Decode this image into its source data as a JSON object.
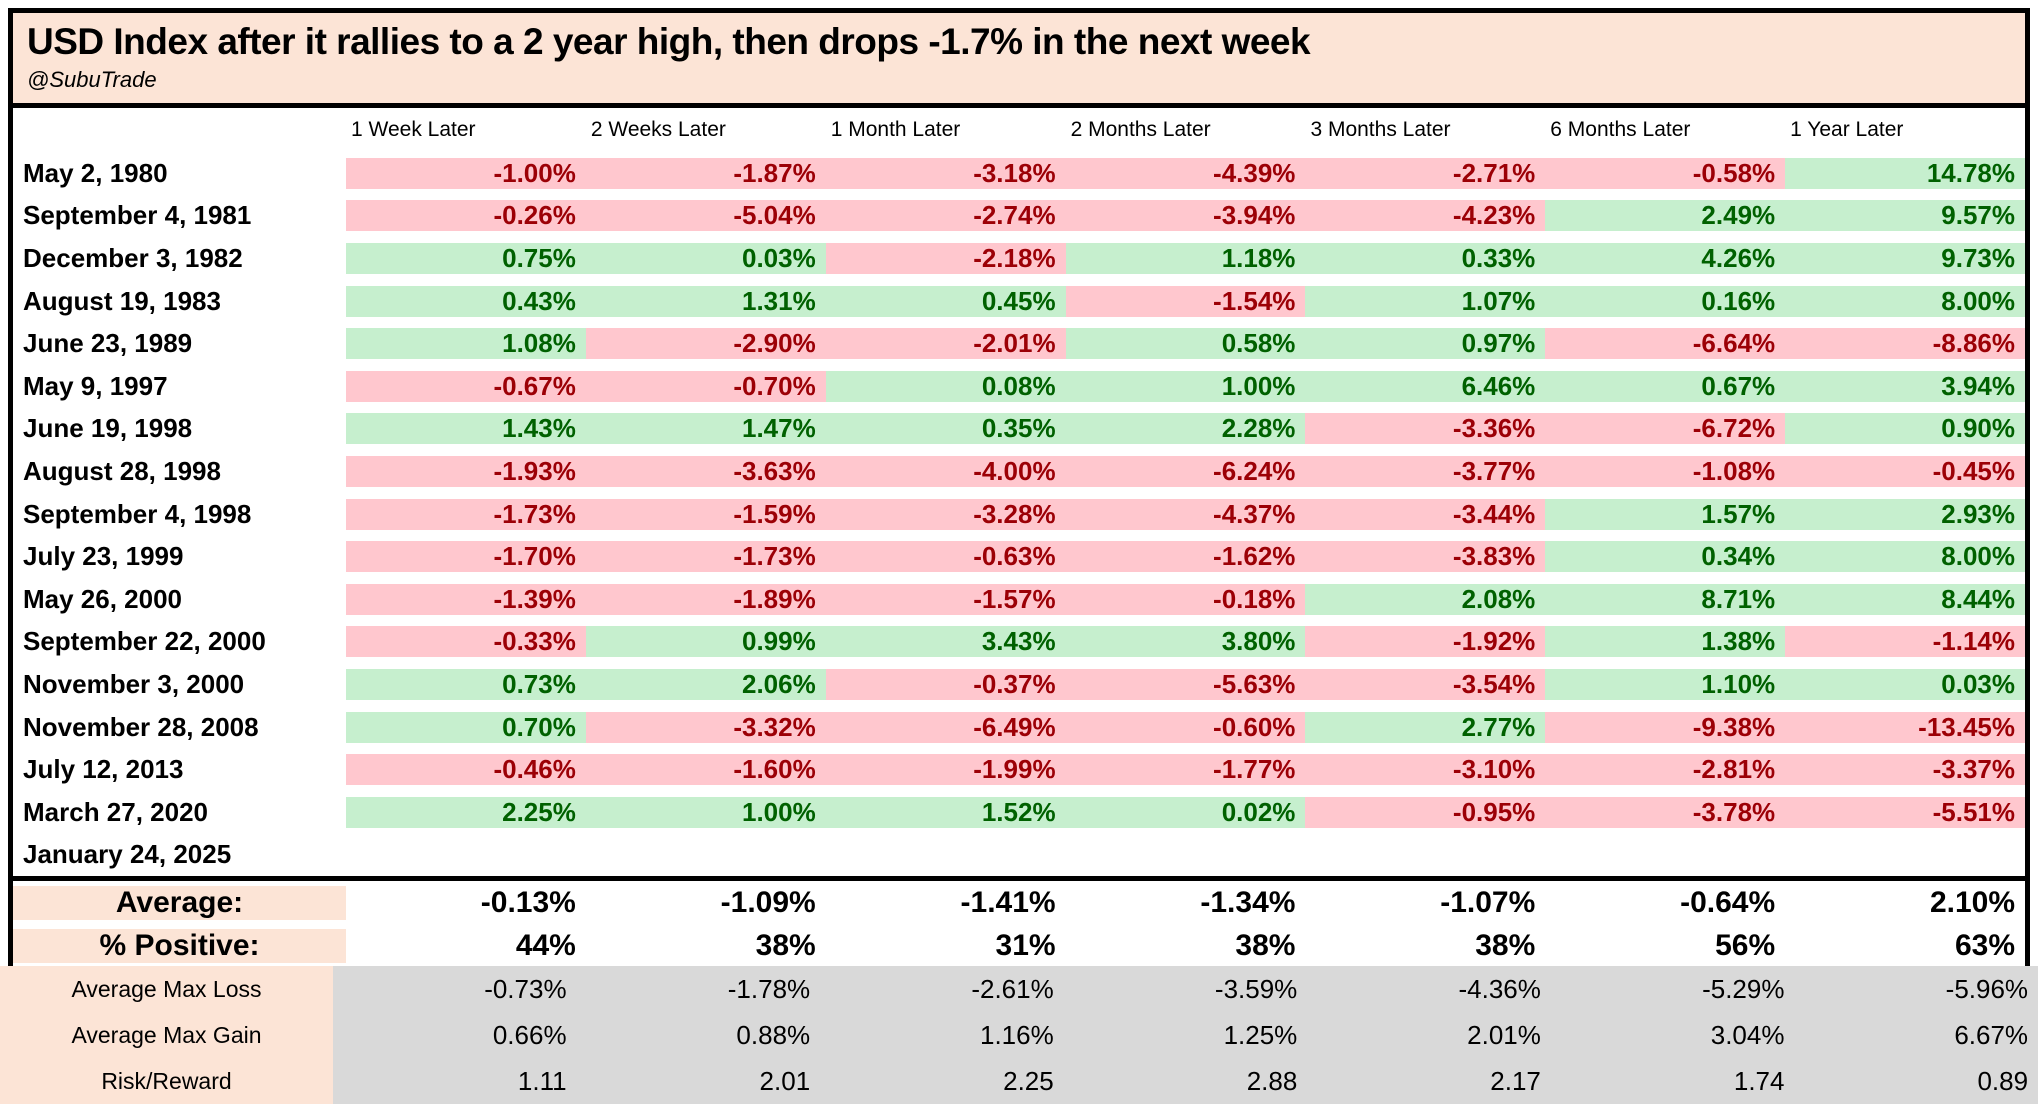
{
  "chart_data": {
    "type": "table",
    "title": "USD Index after it rallies to a 2 year high, then drops -1.7% in the next week",
    "subtitle": "@SubuTrade",
    "columns": [
      "1 Week Later",
      "2 Weeks Later",
      "1 Month Later",
      "2 Months Later",
      "3 Months Later",
      "6 Months Later",
      "1 Year Later"
    ],
    "rows": [
      {
        "date": "May 2, 1980",
        "values": [
          "-1.00%",
          "-1.87%",
          "-3.18%",
          "-4.39%",
          "-2.71%",
          "-0.58%",
          "14.78%"
        ]
      },
      {
        "date": "September 4, 1981",
        "values": [
          "-0.26%",
          "-5.04%",
          "-2.74%",
          "-3.94%",
          "-4.23%",
          "2.49%",
          "9.57%"
        ]
      },
      {
        "date": "December 3, 1982",
        "values": [
          "0.75%",
          "0.03%",
          "-2.18%",
          "1.18%",
          "0.33%",
          "4.26%",
          "9.73%"
        ]
      },
      {
        "date": "August 19, 1983",
        "values": [
          "0.43%",
          "1.31%",
          "0.45%",
          "-1.54%",
          "1.07%",
          "0.16%",
          "8.00%"
        ]
      },
      {
        "date": "June 23, 1989",
        "values": [
          "1.08%",
          "-2.90%",
          "-2.01%",
          "0.58%",
          "0.97%",
          "-6.64%",
          "-8.86%"
        ]
      },
      {
        "date": "May 9, 1997",
        "values": [
          "-0.67%",
          "-0.70%",
          "0.08%",
          "1.00%",
          "6.46%",
          "0.67%",
          "3.94%"
        ]
      },
      {
        "date": "June 19, 1998",
        "values": [
          "1.43%",
          "1.47%",
          "0.35%",
          "2.28%",
          "-3.36%",
          "-6.72%",
          "0.90%"
        ]
      },
      {
        "date": "August 28, 1998",
        "values": [
          "-1.93%",
          "-3.63%",
          "-4.00%",
          "-6.24%",
          "-3.77%",
          "-1.08%",
          "-0.45%"
        ]
      },
      {
        "date": "September 4, 1998",
        "values": [
          "-1.73%",
          "-1.59%",
          "-3.28%",
          "-4.37%",
          "-3.44%",
          "1.57%",
          "2.93%"
        ]
      },
      {
        "date": "July 23, 1999",
        "values": [
          "-1.70%",
          "-1.73%",
          "-0.63%",
          "-1.62%",
          "-3.83%",
          "0.34%",
          "8.00%"
        ]
      },
      {
        "date": "May 26, 2000",
        "values": [
          "-1.39%",
          "-1.89%",
          "-1.57%",
          "-0.18%",
          "2.08%",
          "8.71%",
          "8.44%"
        ]
      },
      {
        "date": "September 22, 2000",
        "values": [
          "-0.33%",
          "0.99%",
          "3.43%",
          "3.80%",
          "-1.92%",
          "1.38%",
          "-1.14%"
        ]
      },
      {
        "date": "November 3, 2000",
        "values": [
          "0.73%",
          "2.06%",
          "-0.37%",
          "-5.63%",
          "-3.54%",
          "1.10%",
          "0.03%"
        ]
      },
      {
        "date": "November 28, 2008",
        "values": [
          "0.70%",
          "-3.32%",
          "-6.49%",
          "-0.60%",
          "2.77%",
          "-9.38%",
          "-13.45%"
        ]
      },
      {
        "date": "July 12, 2013",
        "values": [
          "-0.46%",
          "-1.60%",
          "-1.99%",
          "-1.77%",
          "-3.10%",
          "-2.81%",
          "-3.37%"
        ]
      },
      {
        "date": "March 27, 2020",
        "values": [
          "2.25%",
          "1.00%",
          "1.52%",
          "0.02%",
          "-0.95%",
          "-3.78%",
          "-5.51%"
        ]
      },
      {
        "date": "January 24, 2025",
        "values": [
          "",
          "",
          "",
          "",
          "",
          "",
          ""
        ]
      }
    ],
    "summary_rows": [
      {
        "label": "Average:",
        "values": [
          "-0.13%",
          "-1.09%",
          "-1.41%",
          "-1.34%",
          "-1.07%",
          "-0.64%",
          "2.10%"
        ]
      },
      {
        "label": "% Positive:",
        "values": [
          "44%",
          "38%",
          "31%",
          "38%",
          "38%",
          "56%",
          "63%"
        ]
      }
    ],
    "stat_rows": [
      {
        "label": "Average Max Loss",
        "values": [
          "-0.73%",
          "-1.78%",
          "-2.61%",
          "-3.59%",
          "-4.36%",
          "-5.29%",
          "-5.96%"
        ]
      },
      {
        "label": "Average Max Gain",
        "values": [
          "0.66%",
          "0.88%",
          "1.16%",
          "1.25%",
          "2.01%",
          "3.04%",
          "6.67%"
        ]
      },
      {
        "label": "Risk/Reward",
        "values": [
          "1.11",
          "2.01",
          "2.25",
          "2.88",
          "2.17",
          "1.74",
          "0.89"
        ]
      }
    ],
    "colors": {
      "positive_bg": "#C6EFCE",
      "positive_text": "#006100",
      "negative_bg": "#FFC7CE",
      "negative_text": "#9C0006",
      "label_bg": "#FCE4D6",
      "stats_bg": "#D9D9D9",
      "border": "#000000"
    }
  }
}
